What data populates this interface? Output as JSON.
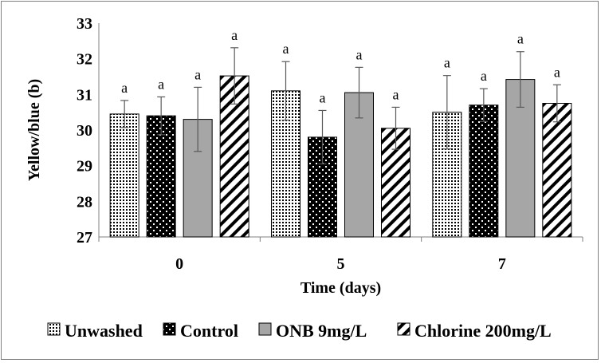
{
  "chart_data": {
    "type": "bar",
    "xlabel": "Time (days)",
    "ylabel": "Yellow/blue (b)",
    "ylim": [
      27,
      33
    ],
    "yticks": [
      27,
      28,
      29,
      30,
      31,
      32,
      33
    ],
    "categories": [
      "0",
      "5",
      "7"
    ],
    "grid": false,
    "legend_position": "bottom",
    "series": [
      {
        "name": "Unwashed",
        "pattern": "dotted",
        "values": [
          30.45,
          31.1,
          30.5
        ],
        "errors": [
          0.38,
          0.82,
          1.03
        ],
        "labels": [
          "a",
          "a",
          "a"
        ]
      },
      {
        "name": "Control",
        "pattern": "black-dots",
        "values": [
          30.4,
          29.8,
          30.7
        ],
        "errors": [
          0.53,
          0.75,
          0.46
        ],
        "labels": [
          "a",
          "a",
          "a"
        ]
      },
      {
        "name": "ONB 9mg/L",
        "pattern": "gray",
        "values": [
          30.3,
          31.05,
          31.42
        ],
        "errors": [
          0.9,
          0.71,
          0.78
        ],
        "labels": [
          "a",
          "a",
          "a"
        ]
      },
      {
        "name": "Chlorine 200mg/L",
        "pattern": "hatched",
        "values": [
          31.52,
          30.05,
          30.75
        ],
        "errors": [
          0.79,
          0.59,
          0.52
        ],
        "labels": [
          "a",
          "a",
          "a"
        ]
      }
    ],
    "colors": {
      "axis": "#808080",
      "bar_outline": "#000000",
      "gray_fill": "#a6a6a6",
      "error_bar": "#595959"
    }
  }
}
